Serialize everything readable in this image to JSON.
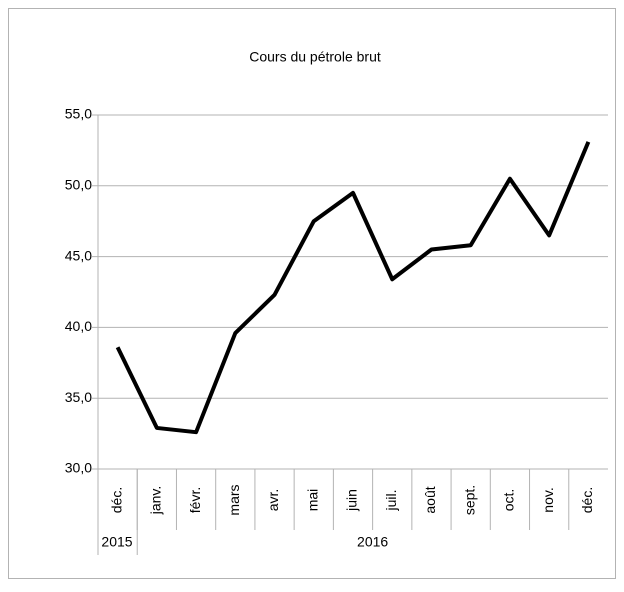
{
  "chart_data": {
    "type": "line",
    "title": "Cours du pétrole brut",
    "categories": [
      "déc.",
      "janv.",
      "févr.",
      "mars",
      "avr.",
      "mai",
      "juin",
      "juil.",
      "août",
      "sept.",
      "oct.",
      "nov.",
      "déc."
    ],
    "year_groups": [
      {
        "label": "2015",
        "count": 1
      },
      {
        "label": "2016",
        "count": 12
      }
    ],
    "values": [
      38.6,
      32.9,
      32.6,
      39.6,
      42.3,
      47.5,
      49.5,
      43.4,
      45.5,
      45.8,
      50.5,
      46.5,
      53.1
    ],
    "color": "#000000",
    "ylim": [
      30,
      55
    ],
    "yticks": [
      {
        "value": 30,
        "label": "30,0"
      },
      {
        "value": 35,
        "label": "35,0"
      },
      {
        "value": 40,
        "label": "40,0"
      },
      {
        "value": 45,
        "label": "45,0"
      },
      {
        "value": 50,
        "label": "50,0"
      },
      {
        "value": 55,
        "label": "55,0"
      }
    ],
    "grid": true
  }
}
